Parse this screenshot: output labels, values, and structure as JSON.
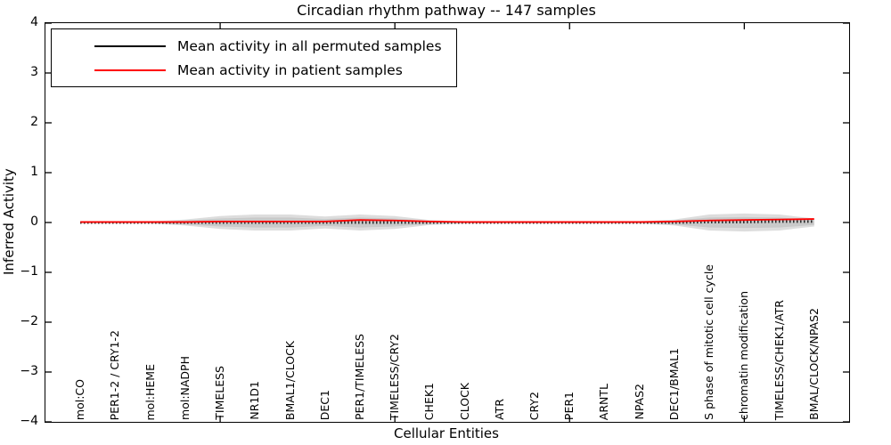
{
  "title": "Circadian rhythm pathway -- 147 samples",
  "axes": {
    "x_label": "Cellular Entities",
    "y_label": "Inferred Activity"
  },
  "legend": {
    "entries": [
      {
        "label": "Mean activity in all permuted samples",
        "color": "#000000"
      },
      {
        "label": "Mean activity in patient samples",
        "color": "#ff0000"
      }
    ],
    "position": "upper left"
  },
  "chart_data": {
    "type": "line",
    "title": "Circadian rhythm pathway -- 147 samples",
    "xlabel": "Cellular Entities",
    "ylabel": "Inferred Activity",
    "categories": [
      "mol:CO",
      "PER1-2 / CRY1-2",
      "mol:HEME",
      "mol:NADPH",
      "TIMELESS",
      "NR1D1",
      "BMAL1/CLOCK",
      "DEC1",
      "PER1/TIMELESS",
      "TIMELESS/CRY2",
      "CHEK1",
      "CLOCK",
      "ATR",
      "CRY2",
      "PER1",
      "ARNTL",
      "NPAS2",
      "DEC1/BMAL1",
      "S phase of mitotic cell cycle",
      "chromatin modification",
      "TIMELESS/CHEK1/ATR",
      "BMAL/CLOCK/NPAS2"
    ],
    "x_positions": [
      1,
      2,
      3,
      4,
      5,
      6,
      7,
      8,
      9,
      10,
      11,
      12,
      13,
      14,
      15,
      16,
      17,
      18,
      19,
      20,
      21,
      22
    ],
    "xlim": [
      0,
      23
    ],
    "ylim": [
      -4,
      4
    ],
    "yticks": [
      -4,
      -3,
      -2,
      -1,
      0,
      1,
      2,
      3,
      4
    ],
    "xticks": [
      5,
      10,
      15,
      20
    ],
    "grid": false,
    "legend_position": "upper left",
    "series": [
      {
        "name": "Mean activity in all permuted samples",
        "color": "#000000",
        "style": "tick-dashed",
        "values": [
          0,
          0,
          0,
          0,
          0,
          0,
          0,
          0,
          0,
          0,
          0,
          0,
          0,
          0,
          0,
          0,
          0,
          0,
          0.01,
          0.01,
          0.02,
          0.02
        ]
      },
      {
        "name": "Mean activity in patient samples",
        "color": "#ff0000",
        "style": "solid",
        "values": [
          0.01,
          0.01,
          0.01,
          0.01,
          0.02,
          0.02,
          0.02,
          0.02,
          0.05,
          0.04,
          0.02,
          0.01,
          0.01,
          0.01,
          0.01,
          0.01,
          0.01,
          0.02,
          0.04,
          0.05,
          0.06,
          0.07
        ]
      }
    ],
    "bands": [
      {
        "name": "permuted-samples-spread-outer",
        "color": "#dddddd",
        "center": 0,
        "half_widths": [
          0.02,
          0.02,
          0.02,
          0.06,
          0.13,
          0.16,
          0.16,
          0.12,
          0.16,
          0.13,
          0.05,
          0.02,
          0.02,
          0.02,
          0.02,
          0.02,
          0.02,
          0.06,
          0.16,
          0.18,
          0.16,
          0.08
        ]
      },
      {
        "name": "permuted-samples-spread-inner",
        "color": "#c9c9c9",
        "center": 0,
        "half_widths": [
          0.01,
          0.01,
          0.01,
          0.04,
          0.08,
          0.1,
          0.1,
          0.07,
          0.1,
          0.08,
          0.03,
          0.01,
          0.01,
          0.01,
          0.01,
          0.01,
          0.01,
          0.04,
          0.1,
          0.11,
          0.1,
          0.05
        ]
      }
    ]
  }
}
